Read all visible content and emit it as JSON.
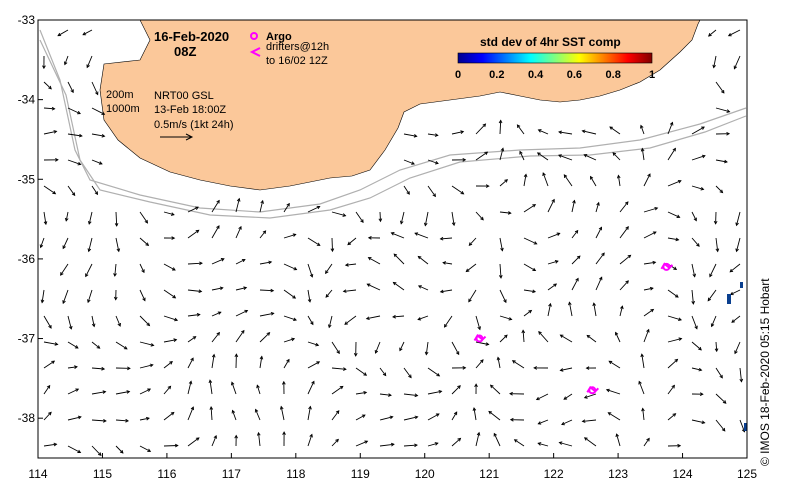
{
  "map": {
    "date": "16-Feb-2020",
    "time": "08Z",
    "credit": "© IMOS 18-Feb-2020 05:15 Hobart",
    "legend": {
      "argo_label": "Argo",
      "drifters_line1": "drifters@12h",
      "drifters_line2": "to 16/02 12Z"
    },
    "colorbar": {
      "title": "std dev of 4hr SST comp",
      "ticks": [
        "0",
        "0.2",
        "0.4",
        "0.6",
        "0.8",
        "1"
      ]
    },
    "isobaths": {
      "shallow": "200m",
      "deep": "1000m"
    },
    "product": {
      "name": "NRT00 GSL",
      "date": "13-Feb 18:00Z",
      "scale": "0.5m/s (1kt 24h)"
    },
    "colors": {
      "land": "#fbc89a",
      "drifter": "#ff00ff",
      "isobath": "#b0b0b0",
      "sst_patch": "#0a3f8f"
    }
  },
  "chart_data": {
    "type": "map",
    "x_axis": {
      "label": "",
      "range": [
        114,
        125
      ],
      "ticks": [
        "114",
        "115",
        "116",
        "117",
        "118",
        "119",
        "120",
        "121",
        "122",
        "123",
        "124",
        "125"
      ]
    },
    "y_axis": {
      "label": "",
      "range": [
        -38.5,
        -33
      ],
      "ticks": [
        "-33",
        "-34",
        "-35",
        "-36",
        "-37",
        "-38"
      ]
    },
    "drifter_positions": [
      {
        "lon": 120.85,
        "lat": -37.0
      },
      {
        "lon": 122.6,
        "lat": -37.65
      },
      {
        "lon": 123.75,
        "lat": -36.1
      }
    ]
  }
}
